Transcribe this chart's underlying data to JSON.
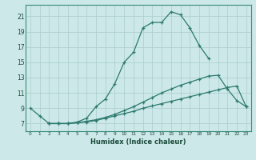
{
  "xlabel": "Humidex (Indice chaleur)",
  "bg_color": "#cce8e8",
  "line_color": "#2d7a6e",
  "grid_color": "#aacece",
  "x_ticks": [
    0,
    1,
    2,
    3,
    4,
    5,
    6,
    7,
    8,
    9,
    10,
    11,
    12,
    13,
    14,
    15,
    16,
    17,
    18,
    19,
    20,
    21,
    22,
    23
  ],
  "y_ticks": [
    7,
    9,
    11,
    13,
    15,
    17,
    19,
    21
  ],
  "xlim": [
    -0.5,
    23.5
  ],
  "ylim": [
    6.0,
    22.5
  ],
  "series1_x": [
    0,
    1,
    2,
    3,
    4,
    5,
    6,
    7,
    8,
    9,
    10,
    11,
    12,
    13,
    14,
    15,
    16,
    17,
    18,
    19
  ],
  "series1_y": [
    9.0,
    8.0,
    7.0,
    7.0,
    7.0,
    7.2,
    7.7,
    9.2,
    10.2,
    12.2,
    15.0,
    16.3,
    19.5,
    20.2,
    20.2,
    21.6,
    21.2,
    19.5,
    17.2,
    15.5
  ],
  "series2_x": [
    2,
    3,
    4,
    5,
    6,
    7,
    8,
    9,
    10,
    11,
    12,
    13,
    14,
    15,
    16,
    17,
    18,
    19,
    20,
    21,
    22,
    23
  ],
  "series2_y": [
    7.0,
    7.0,
    7.0,
    7.1,
    7.3,
    7.5,
    7.8,
    8.2,
    8.7,
    9.2,
    9.8,
    10.4,
    11.0,
    11.5,
    12.0,
    12.4,
    12.8,
    13.2,
    13.3,
    11.5,
    10.0,
    9.2
  ],
  "series3_x": [
    2,
    3,
    4,
    5,
    6,
    7,
    8,
    9,
    10,
    11,
    12,
    13,
    14,
    15,
    16,
    17,
    18,
    19,
    20,
    21,
    22,
    23
  ],
  "series3_y": [
    7.0,
    7.0,
    7.0,
    7.1,
    7.2,
    7.4,
    7.7,
    8.0,
    8.3,
    8.6,
    9.0,
    9.3,
    9.6,
    9.9,
    10.2,
    10.5,
    10.8,
    11.1,
    11.4,
    11.7,
    11.9,
    9.2
  ]
}
